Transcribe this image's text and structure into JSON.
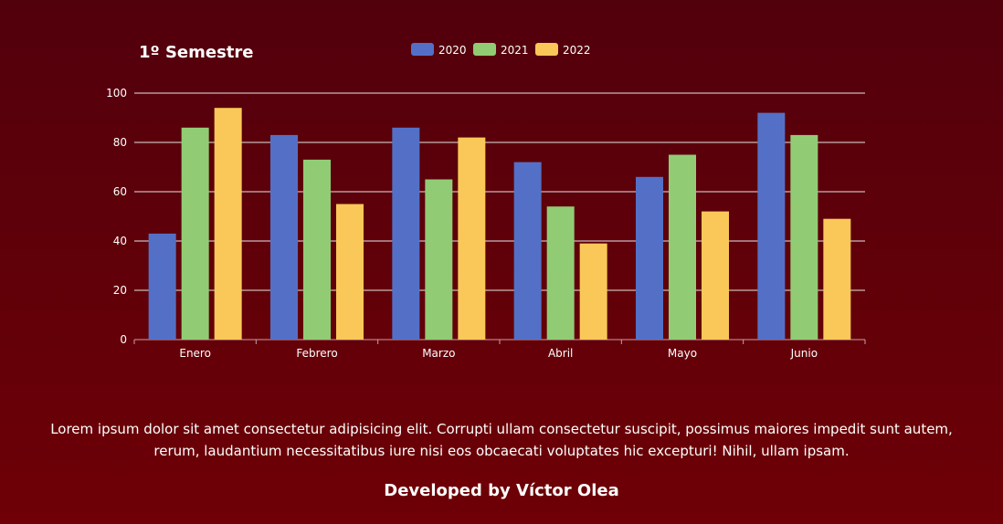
{
  "chart_data": {
    "type": "bar",
    "title": "1º Semestre",
    "categories": [
      "Enero",
      "Febrero",
      "Marzo",
      "Abril",
      "Mayo",
      "Junio"
    ],
    "series": [
      {
        "name": "2020",
        "color": "#5470c6",
        "values": [
          43,
          83,
          86,
          72,
          66,
          92
        ]
      },
      {
        "name": "2021",
        "color": "#91cc75",
        "values": [
          86,
          73,
          65,
          54,
          75,
          83
        ]
      },
      {
        "name": "2022",
        "color": "#fac858",
        "values": [
          94,
          55,
          82,
          39,
          52,
          49
        ]
      }
    ],
    "ylim": [
      0,
      100
    ],
    "yticks": [
      "0",
      "20",
      "40",
      "60",
      "80",
      "100"
    ],
    "grid": true,
    "legend_position": "top-center"
  },
  "description": "Lorem ipsum dolor sit amet consectetur adipisicing elit. Corrupti ullam consectetur suscipit, possimus maiores impedit sunt autem, rerum, laudantium necessitatibus iure nisi eos obcaecati voluptates hic excepturi! Nihil, ullam ipsam.",
  "footer": {
    "credit": "Developed by Víctor Olea"
  }
}
